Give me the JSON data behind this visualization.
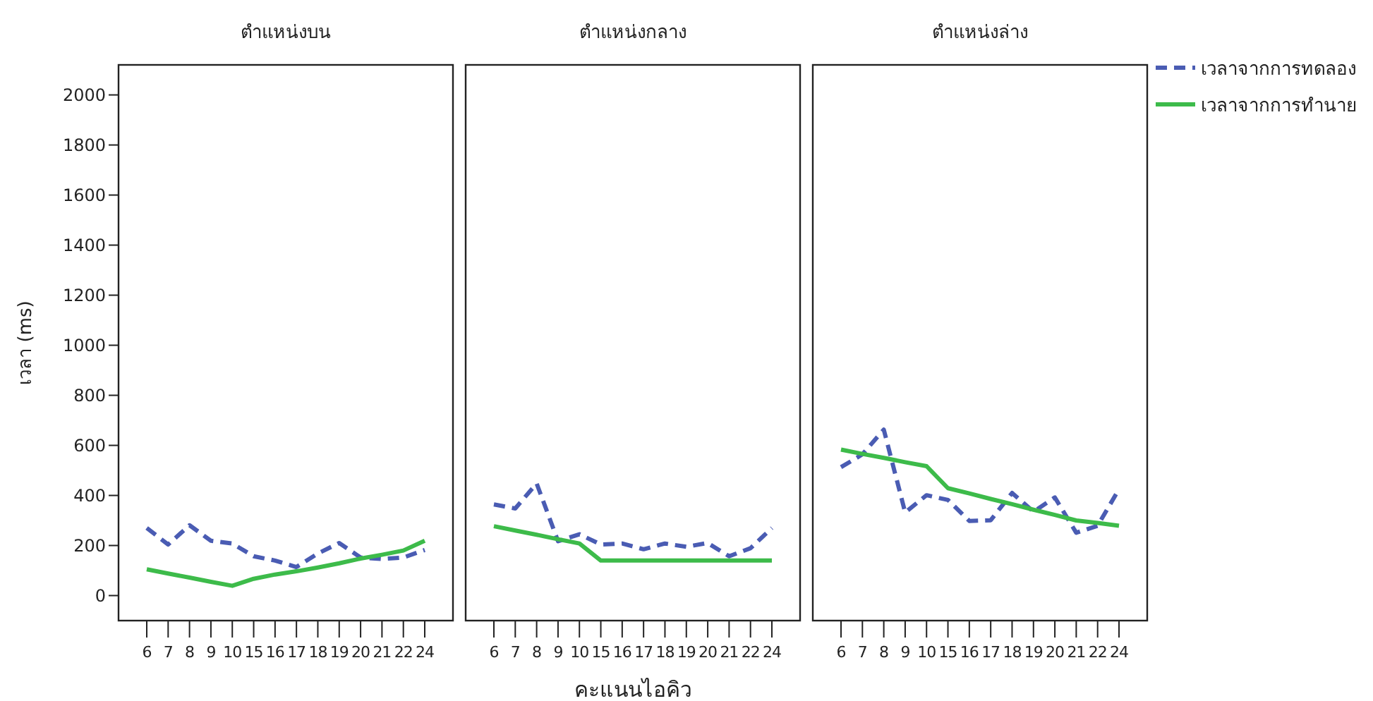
{
  "chart_data": [
    {
      "type": "line",
      "title": "ตำแหน่งบน",
      "ylabel": "เวลา (ms)",
      "categories": [
        "6",
        "7",
        "8",
        "9",
        "10",
        "15",
        "16",
        "17",
        "18",
        "19",
        "20",
        "21",
        "22",
        "24"
      ],
      "ylim": [
        -100,
        2120
      ],
      "yticks": [
        0,
        200,
        400,
        600,
        800,
        1000,
        1200,
        1400,
        1600,
        1800,
        2000
      ],
      "grid": false,
      "marker": "none",
      "series": [
        {
          "color": "#4a5cb3",
          "line_style": "dashed",
          "values": [
            270,
            204,
            281,
            219,
            208,
            157,
            140,
            114,
            168,
            210,
            152,
            146,
            152,
            182
          ]
        },
        {
          "color": "#3dbb4a",
          "line_style": "solid",
          "values": [
            105,
            88,
            72,
            55,
            39,
            67,
            84,
            97,
            112,
            129,
            148,
            163,
            180,
            219
          ]
        }
      ]
    },
    {
      "type": "line",
      "title": "ตำแหน่งกลาง",
      "xlabel": "คะแนนไอคิว",
      "categories": [
        "6",
        "7",
        "8",
        "9",
        "10",
        "15",
        "16",
        "17",
        "18",
        "19",
        "20",
        "21",
        "22",
        "24"
      ],
      "ylim": [
        -100,
        2120
      ],
      "tick_labels": "x",
      "grid": false,
      "marker": "none",
      "series": [
        {
          "color": "#4a5cb3",
          "line_style": "dashed",
          "values": [
            364,
            348,
            448,
            217,
            245,
            204,
            208,
            185,
            208,
            195,
            210,
            157,
            189,
            270
          ]
        },
        {
          "color": "#3dbb4a",
          "line_style": "solid",
          "values": [
            277,
            260,
            243,
            225,
            208,
            140,
            140,
            140,
            140,
            140,
            140,
            140,
            140,
            140
          ]
        }
      ]
    },
    {
      "type": "line",
      "title": "ตำแหน่งล่าง",
      "categories": [
        "6",
        "7",
        "8",
        "9",
        "10",
        "15",
        "16",
        "17",
        "18",
        "19",
        "20",
        "21",
        "22",
        "24"
      ],
      "ylim": [
        -100,
        2120
      ],
      "tick_labels": "x",
      "grid": false,
      "legend": "top right",
      "marker": "none",
      "series": [
        {
          "name": "เวลาจากการทดลอง",
          "color": "#4a5cb3",
          "line_style": "dashed",
          "values": [
            513,
            564,
            663,
            332,
            401,
            382,
            298,
            301,
            410,
            335,
            392,
            251,
            279,
            425
          ]
        },
        {
          "name": "เวลาจากการทำนาย",
          "color": "#3dbb4a",
          "line_style": "solid",
          "values": [
            583,
            566,
            550,
            533,
            517,
            429,
            408,
            386,
            365,
            343,
            322,
            300,
            290,
            279
          ]
        }
      ]
    }
  ]
}
